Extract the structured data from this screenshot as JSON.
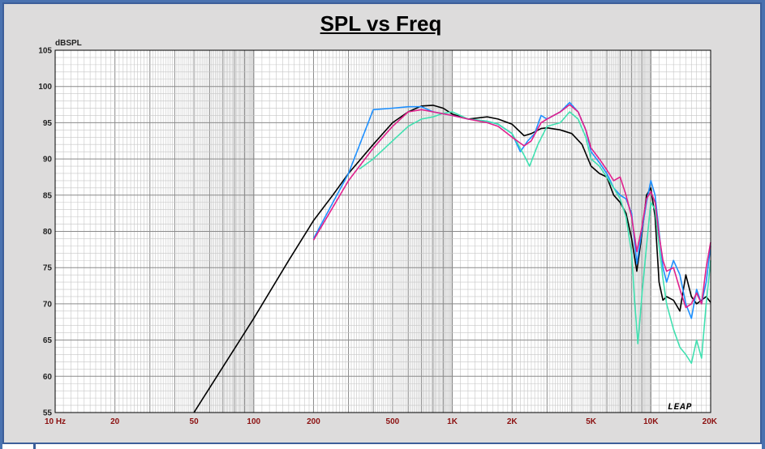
{
  "chart_data": {
    "type": "line",
    "title": "SPL vs Freq",
    "ylabel": "dBSPL",
    "xlabel": "",
    "x_scale": "log",
    "xlim": [
      10,
      20000
    ],
    "ylim": [
      55,
      105
    ],
    "x_ticks": [
      {
        "value": 10,
        "label": "10 Hz"
      },
      {
        "value": 20,
        "label": "20"
      },
      {
        "value": 50,
        "label": "50"
      },
      {
        "value": 100,
        "label": "100"
      },
      {
        "value": 200,
        "label": "200"
      },
      {
        "value": 500,
        "label": "500"
      },
      {
        "value": 1000,
        "label": "1K"
      },
      {
        "value": 2000,
        "label": "2K"
      },
      {
        "value": 5000,
        "label": "5K"
      },
      {
        "value": 10000,
        "label": "10K"
      },
      {
        "value": 20000,
        "label": "20K"
      }
    ],
    "y_ticks": [
      55,
      60,
      65,
      70,
      75,
      80,
      85,
      90,
      95,
      100,
      105
    ],
    "grid": true,
    "brand": "LEAP",
    "series": [
      {
        "color": "#000000",
        "points": [
          [
            50,
            55
          ],
          [
            100,
            68
          ],
          [
            150,
            76
          ],
          [
            200,
            81.5
          ],
          [
            250,
            85
          ],
          [
            300,
            88
          ],
          [
            400,
            92
          ],
          [
            500,
            95
          ],
          [
            600,
            96.5
          ],
          [
            700,
            97.3
          ],
          [
            800,
            97.4
          ],
          [
            900,
            97
          ],
          [
            1000,
            96.2
          ],
          [
            1200,
            95.5
          ],
          [
            1500,
            95.8
          ],
          [
            1700,
            95.5
          ],
          [
            2000,
            94.8
          ],
          [
            2300,
            93.2
          ],
          [
            2500,
            93.5
          ],
          [
            2800,
            94.2
          ],
          [
            3000,
            94.3
          ],
          [
            3500,
            94
          ],
          [
            4000,
            93.5
          ],
          [
            4500,
            92
          ],
          [
            5000,
            89
          ],
          [
            5500,
            88
          ],
          [
            6000,
            87.5
          ],
          [
            6500,
            85
          ],
          [
            7000,
            84
          ],
          [
            7500,
            82.5
          ],
          [
            8000,
            79
          ],
          [
            8500,
            74.5
          ],
          [
            9000,
            79.5
          ],
          [
            9500,
            85
          ],
          [
            10000,
            86
          ],
          [
            10500,
            82
          ],
          [
            11000,
            73
          ],
          [
            11500,
            70.5
          ],
          [
            12000,
            71
          ],
          [
            13000,
            70.5
          ],
          [
            14000,
            69
          ],
          [
            15000,
            74
          ],
          [
            16000,
            71
          ],
          [
            17000,
            70
          ],
          [
            18000,
            70.5
          ],
          [
            19000,
            71
          ],
          [
            20000,
            70.2
          ]
        ]
      },
      {
        "color": "#1e90ff",
        "points": [
          [
            200,
            79
          ],
          [
            300,
            88
          ],
          [
            400,
            96.8
          ],
          [
            500,
            97
          ],
          [
            600,
            97.2
          ],
          [
            700,
            97.2
          ],
          [
            800,
            96.5
          ],
          [
            1000,
            96
          ],
          [
            1200,
            95.5
          ],
          [
            1500,
            95.2
          ],
          [
            1700,
            94.8
          ],
          [
            2000,
            93.5
          ],
          [
            2200,
            91
          ],
          [
            2400,
            92.5
          ],
          [
            2600,
            93.5
          ],
          [
            2800,
            96
          ],
          [
            3000,
            95.5
          ],
          [
            3500,
            96.5
          ],
          [
            3900,
            97.8
          ],
          [
            4300,
            96.5
          ],
          [
            4700,
            94
          ],
          [
            5000,
            91
          ],
          [
            5500,
            89.5
          ],
          [
            6000,
            88
          ],
          [
            6500,
            86
          ],
          [
            7000,
            85
          ],
          [
            7500,
            84.5
          ],
          [
            8000,
            82.5
          ],
          [
            8500,
            75.5
          ],
          [
            9000,
            80
          ],
          [
            9500,
            84
          ],
          [
            10000,
            87
          ],
          [
            10500,
            85
          ],
          [
            11000,
            80
          ],
          [
            11500,
            75
          ],
          [
            12000,
            73
          ],
          [
            13000,
            76
          ],
          [
            14000,
            74
          ],
          [
            15000,
            70
          ],
          [
            16000,
            68
          ],
          [
            17000,
            72
          ],
          [
            18000,
            70
          ],
          [
            19000,
            73
          ],
          [
            20000,
            78
          ]
        ]
      },
      {
        "color": "#40e0b0",
        "points": [
          [
            340,
            88.6
          ],
          [
            400,
            90
          ],
          [
            500,
            92.5
          ],
          [
            600,
            94.5
          ],
          [
            700,
            95.5
          ],
          [
            800,
            95.8
          ],
          [
            900,
            96.3
          ],
          [
            1000,
            96.5
          ],
          [
            1200,
            95.5
          ],
          [
            1500,
            95.2
          ],
          [
            1700,
            94.8
          ],
          [
            2000,
            93.5
          ],
          [
            2300,
            90.5
          ],
          [
            2450,
            89
          ],
          [
            2700,
            92
          ],
          [
            3000,
            94.5
          ],
          [
            3500,
            95
          ],
          [
            3900,
            96.5
          ],
          [
            4300,
            95.5
          ],
          [
            4700,
            93
          ],
          [
            5000,
            90
          ],
          [
            5500,
            89
          ],
          [
            6000,
            87.5
          ],
          [
            6500,
            86
          ],
          [
            7000,
            84.5
          ],
          [
            7500,
            82
          ],
          [
            8000,
            77
          ],
          [
            8300,
            70
          ],
          [
            8600,
            64.5
          ],
          [
            9000,
            71
          ],
          [
            9500,
            78
          ],
          [
            10000,
            84
          ],
          [
            10500,
            83
          ],
          [
            11000,
            78
          ],
          [
            11500,
            73.5
          ],
          [
            12000,
            70
          ],
          [
            13000,
            66.5
          ],
          [
            14000,
            64
          ],
          [
            15000,
            63
          ],
          [
            16000,
            61.8
          ],
          [
            17000,
            65
          ],
          [
            18000,
            62.5
          ],
          [
            19000,
            70
          ],
          [
            20000,
            76
          ]
        ]
      },
      {
        "color": "#e0208c",
        "points": [
          [
            200,
            78.8
          ],
          [
            300,
            87
          ],
          [
            400,
            91.5
          ],
          [
            500,
            94.5
          ],
          [
            600,
            96.5
          ],
          [
            700,
            96.8
          ],
          [
            800,
            96.5
          ],
          [
            1000,
            96
          ],
          [
            1200,
            95.5
          ],
          [
            1500,
            95
          ],
          [
            1700,
            94.5
          ],
          [
            2000,
            93
          ],
          [
            2300,
            91.8
          ],
          [
            2500,
            92.5
          ],
          [
            2800,
            95
          ],
          [
            3000,
            95.5
          ],
          [
            3500,
            96.5
          ],
          [
            3900,
            97.5
          ],
          [
            4300,
            96.5
          ],
          [
            4700,
            94
          ],
          [
            5000,
            91.5
          ],
          [
            5500,
            90
          ],
          [
            6000,
            88.5
          ],
          [
            6500,
            87
          ],
          [
            7000,
            87.5
          ],
          [
            7500,
            85
          ],
          [
            8000,
            82
          ],
          [
            8500,
            77.2
          ],
          [
            9000,
            80.5
          ],
          [
            9500,
            84.5
          ],
          [
            10000,
            85.5
          ],
          [
            10500,
            84
          ],
          [
            11000,
            79.5
          ],
          [
            11500,
            76
          ],
          [
            12000,
            74.5
          ],
          [
            13000,
            75
          ],
          [
            14000,
            72
          ],
          [
            15000,
            69.5
          ],
          [
            16000,
            70
          ],
          [
            17000,
            71.5
          ],
          [
            18000,
            70
          ],
          [
            19000,
            75
          ],
          [
            20000,
            78.5
          ]
        ]
      }
    ]
  }
}
